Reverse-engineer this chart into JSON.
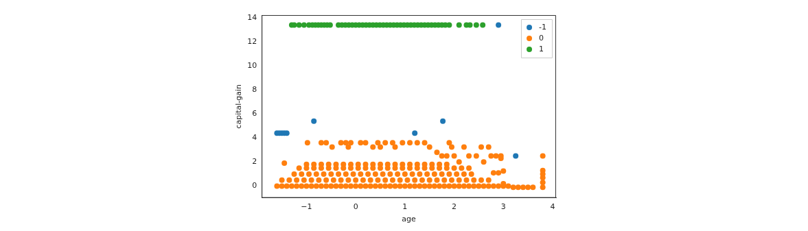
{
  "chart_data": {
    "type": "scatter",
    "xlabel": "age",
    "ylabel": "capital-gain",
    "xlim": [
      -1.91,
      4.07
    ],
    "ylim": [
      -0.98,
      14.23
    ],
    "xticks": [
      {
        "value": -1,
        "label": "−1"
      },
      0,
      1,
      2,
      3,
      4
    ],
    "yticks": [
      0,
      2,
      4,
      6,
      8,
      10,
      12,
      14
    ],
    "legend": "top right",
    "marker": "circle",
    "grid": false,
    "series": [
      {
        "name": "-1",
        "color": "#1f77b4",
        "x": [
          -1.6,
          -1.55,
          -1.5,
          -1.45,
          -1.4,
          -0.85,
          1.2,
          1.77,
          2.9,
          3.25
        ],
        "values": [
          4.4,
          4.4,
          4.4,
          4.4,
          4.4,
          5.4,
          4.4,
          5.4,
          13.4,
          2.5
        ]
      },
      {
        "name": "0",
        "color": "#ff7f0e",
        "x": [
          -1.6,
          -1.5,
          -1.4,
          -1.3,
          -1.2,
          -1.1,
          -1.0,
          -0.9,
          -0.8,
          -0.7,
          -0.6,
          -0.5,
          -0.4,
          -0.3,
          -0.2,
          -0.1,
          0,
          0.1,
          0.2,
          0.3,
          0.4,
          0.5,
          0.6,
          0.7,
          0.8,
          0.9,
          1.0,
          1.1,
          1.2,
          1.3,
          1.4,
          1.5,
          1.6,
          1.7,
          1.8,
          1.9,
          2.0,
          2.1,
          2.2,
          2.3,
          2.4,
          2.5,
          2.6,
          2.7,
          2.8,
          2.9,
          3.0,
          3.1,
          3.2,
          3.3,
          3.4,
          3.5,
          3.6,
          3.8,
          -1.5,
          -1.35,
          -1.2,
          -1.05,
          -0.9,
          -0.75,
          -0.6,
          -0.45,
          -0.3,
          -0.15,
          0,
          0.15,
          0.3,
          0.45,
          0.6,
          0.75,
          0.9,
          1.05,
          1.2,
          1.35,
          1.5,
          1.65,
          1.8,
          1.95,
          2.1,
          2.25,
          2.4,
          2.55,
          2.7,
          -1.25,
          -1.1,
          -0.95,
          -0.8,
          -0.65,
          -0.5,
          -0.35,
          -0.2,
          -0.05,
          0.1,
          0.25,
          0.4,
          0.55,
          0.7,
          0.85,
          1.0,
          1.15,
          1.3,
          1.45,
          1.6,
          1.75,
          1.9,
          2.05,
          2.2,
          2.35,
          -1.15,
          -1.0,
          -0.85,
          -0.7,
          -0.55,
          -0.4,
          -0.25,
          -0.1,
          0.05,
          0.2,
          0.35,
          0.5,
          0.65,
          0.8,
          0.95,
          1.1,
          1.25,
          1.4,
          1.55,
          1.7,
          1.85,
          2.0,
          2.15,
          2.3,
          -1.0,
          -0.85,
          -0.7,
          -0.55,
          -0.4,
          -0.25,
          -0.1,
          0.05,
          0.2,
          0.35,
          0.5,
          0.65,
          0.8,
          0.95,
          1.1,
          1.25,
          1.4,
          1.55,
          1.7,
          1.85,
          -1.45,
          -0.98,
          -0.7,
          -0.6,
          -0.48,
          -0.3,
          -0.2,
          -0.1,
          -0.15,
          0.1,
          0.2,
          0.35,
          0.45,
          0.5,
          0.6,
          0.75,
          0.8,
          0.95,
          1.1,
          1.25,
          1.4,
          1.5,
          1.65,
          1.75,
          1.9,
          1.95,
          1.85,
          2.0,
          2.1,
          2.2,
          2.3,
          2.45,
          2.55,
          2.6,
          2.7,
          2.75,
          2.85,
          2.95,
          2.95,
          2.8,
          2.9,
          3.0,
          3.0,
          3.8,
          3.8,
          3.8,
          3.8,
          3.8
        ],
        "values": [
          0,
          0,
          0,
          0,
          0,
          0,
          0,
          0,
          0,
          0,
          0,
          0,
          0,
          0,
          0,
          0,
          0,
          0,
          0,
          0,
          0,
          0,
          0,
          0,
          0,
          0,
          0,
          0,
          0,
          0,
          0,
          0,
          0,
          0,
          0,
          0,
          0,
          0,
          0,
          0,
          0,
          0,
          0,
          0,
          0,
          0,
          0,
          0,
          -0.1,
          -0.1,
          -0.1,
          -0.1,
          -0.1,
          -0.1,
          0.5,
          0.5,
          0.5,
          0.5,
          0.5,
          0.5,
          0.5,
          0.5,
          0.5,
          0.5,
          0.5,
          0.5,
          0.5,
          0.5,
          0.5,
          0.5,
          0.5,
          0.5,
          0.5,
          0.5,
          0.5,
          0.5,
          0.5,
          0.5,
          0.5,
          0.5,
          0.5,
          0.5,
          0.5,
          1.0,
          1.0,
          1.0,
          1.0,
          1.0,
          1.0,
          1.0,
          1.0,
          1.0,
          1.0,
          1.0,
          1.0,
          1.0,
          1.0,
          1.0,
          1.0,
          1.0,
          1.0,
          1.0,
          1.0,
          1.0,
          1.0,
          1.0,
          1.0,
          1.0,
          1.5,
          1.5,
          1.5,
          1.5,
          1.5,
          1.5,
          1.5,
          1.5,
          1.5,
          1.5,
          1.5,
          1.5,
          1.5,
          1.5,
          1.5,
          1.5,
          1.5,
          1.5,
          1.5,
          1.5,
          1.5,
          1.5,
          1.5,
          1.5,
          1.8,
          1.8,
          1.8,
          1.8,
          1.8,
          1.8,
          1.8,
          1.8,
          1.8,
          1.8,
          1.8,
          1.8,
          1.8,
          1.8,
          1.8,
          1.8,
          1.8,
          1.8,
          1.8,
          1.8,
          1.9,
          3.6,
          3.6,
          3.6,
          3.25,
          3.6,
          3.6,
          3.6,
          3.25,
          3.6,
          3.6,
          3.25,
          3.6,
          3.25,
          3.6,
          3.6,
          3.25,
          3.6,
          3.6,
          3.6,
          3.6,
          3.25,
          2.8,
          2.5,
          3.6,
          3.25,
          2.5,
          2.5,
          2.0,
          3.25,
          2.5,
          2.5,
          3.25,
          2.0,
          3.25,
          2.5,
          2.5,
          2.5,
          2.3,
          1.1,
          1.1,
          1.25,
          0.2,
          2.5,
          1.3,
          1.0,
          0.7,
          0.3
        ]
      },
      {
        "name": "1",
        "color": "#2ca02c",
        "x": [
          -1.3,
          -1.25,
          -1.15,
          -1.05,
          -0.95,
          -0.88,
          -0.82,
          -0.76,
          -0.7,
          -0.64,
          -0.58,
          -0.52,
          -0.35,
          -0.28,
          -0.21,
          -0.14,
          -0.07,
          0,
          0.07,
          0.14,
          0.21,
          0.28,
          0.35,
          0.42,
          0.49,
          0.56,
          0.63,
          0.7,
          0.77,
          0.84,
          0.91,
          0.98,
          1.05,
          1.12,
          1.19,
          1.26,
          1.33,
          1.4,
          1.47,
          1.54,
          1.61,
          1.68,
          1.75,
          1.82,
          1.9,
          2.1,
          2.25,
          2.32,
          2.45,
          2.58
        ],
        "values": [
          13.4,
          13.4,
          13.4,
          13.4,
          13.4,
          13.4,
          13.4,
          13.4,
          13.4,
          13.4,
          13.4,
          13.4,
          13.4,
          13.4,
          13.4,
          13.4,
          13.4,
          13.4,
          13.4,
          13.4,
          13.4,
          13.4,
          13.4,
          13.4,
          13.4,
          13.4,
          13.4,
          13.4,
          13.4,
          13.4,
          13.4,
          13.4,
          13.4,
          13.4,
          13.4,
          13.4,
          13.4,
          13.4,
          13.4,
          13.4,
          13.4,
          13.4,
          13.4,
          13.4,
          13.4,
          13.4,
          13.4,
          13.4,
          13.4,
          13.4
        ]
      }
    ]
  }
}
